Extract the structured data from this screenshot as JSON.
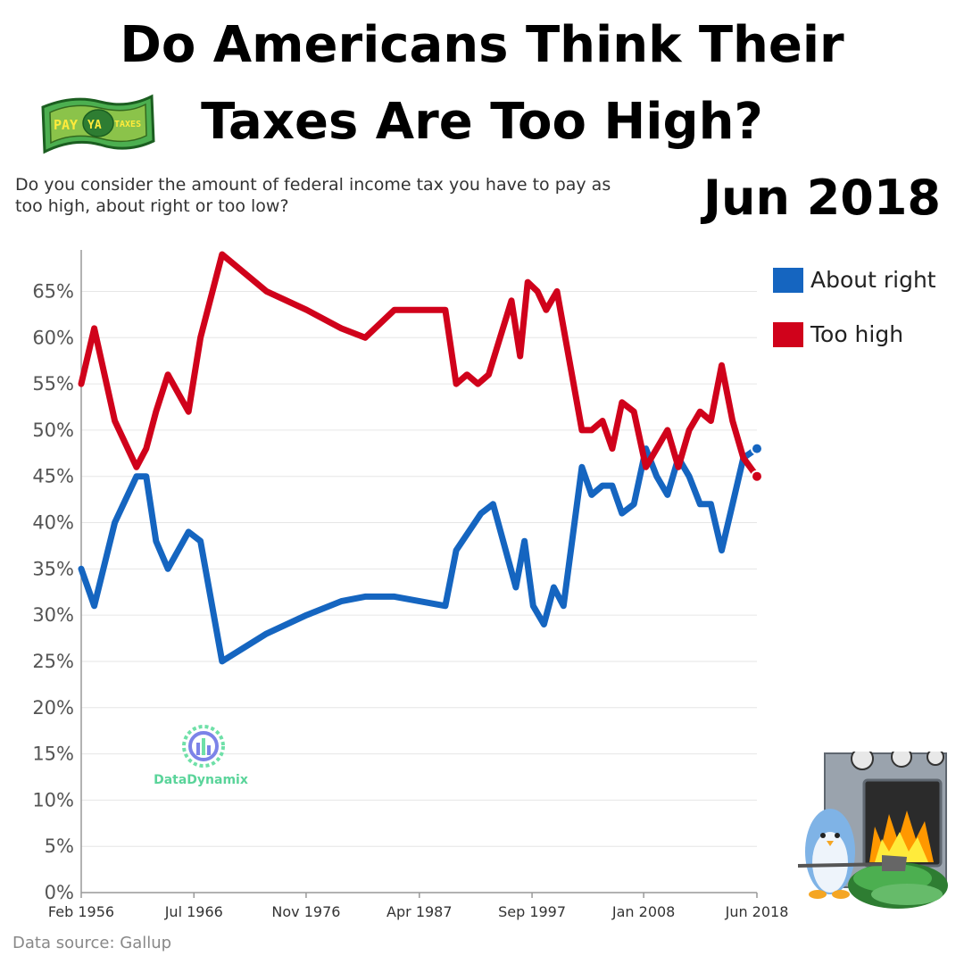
{
  "header": {
    "title_line_1": "Do Americans Think Their",
    "title_line_2": "Taxes Are Too High?",
    "subtitle": "Do you consider the amount of federal income tax you have to pay as too high, about right or too low?",
    "date": "Jun 2018",
    "logo_text_1": "PAY",
    "logo_text_2": "YA",
    "logo_text_3": "TAXES"
  },
  "watermark": {
    "text": "DataDynamix"
  },
  "footer": {
    "source": "Data source: Gallup"
  },
  "colors": {
    "about_right": "#1565c0",
    "too_high": "#d0021b",
    "grid": "#e6e6e6",
    "axis": "#999999"
  },
  "chart_data": {
    "type": "line",
    "title": "Do Americans Think Their Taxes Are Too High?",
    "xlabel": "",
    "ylabel": "",
    "ylim": [
      0,
      69
    ],
    "y_ticks": [
      "0%",
      "5%",
      "10%",
      "15%",
      "20%",
      "25%",
      "30%",
      "35%",
      "40%",
      "45%",
      "50%",
      "55%",
      "60%",
      "65%"
    ],
    "x_ticks": [
      {
        "label": "Feb 1956",
        "x": 1956.1
      },
      {
        "label": "Jul 1966",
        "x": 1966.5
      },
      {
        "label": "Nov 1976",
        "x": 1976.85
      },
      {
        "label": "Apr 1987",
        "x": 1987.3
      },
      {
        "label": "Sep 1997",
        "x": 1997.7
      },
      {
        "label": "Jan 2008",
        "x": 2008.0
      },
      {
        "label": "Jun 2018",
        "x": 2018.45
      }
    ],
    "x_range": [
      1956.1,
      2018.45
    ],
    "grid": true,
    "legend_position": "top-right",
    "series": [
      {
        "name": "About right",
        "color": "#1565c0",
        "points": [
          [
            1956.1,
            35
          ],
          [
            1957.3,
            31
          ],
          [
            1959.2,
            40
          ],
          [
            1961.2,
            45
          ],
          [
            1962.1,
            45
          ],
          [
            1963.0,
            38
          ],
          [
            1964.1,
            35
          ],
          [
            1966.0,
            39
          ],
          [
            1967.1,
            38
          ],
          [
            1969.1,
            25
          ],
          [
            1973.2,
            28
          ],
          [
            1976.9,
            30
          ],
          [
            1980.1,
            31.5
          ],
          [
            1982.3,
            32
          ],
          [
            1985.0,
            32
          ],
          [
            1989.7,
            31
          ],
          [
            1990.7,
            37
          ],
          [
            1993.0,
            41
          ],
          [
            1994.1,
            42
          ],
          [
            1996.2,
            33
          ],
          [
            1997.0,
            38
          ],
          [
            1997.8,
            31
          ],
          [
            1998.8,
            29
          ],
          [
            1999.7,
            33
          ],
          [
            2000.6,
            31
          ],
          [
            2002.3,
            46
          ],
          [
            2003.2,
            43
          ],
          [
            2004.2,
            44
          ],
          [
            2005.1,
            44
          ],
          [
            2006.0,
            41
          ],
          [
            2007.1,
            42
          ],
          [
            2008.2,
            48
          ],
          [
            2009.2,
            45
          ],
          [
            2010.2,
            43
          ],
          [
            2011.2,
            47
          ],
          [
            2012.2,
            45
          ],
          [
            2013.2,
            42
          ],
          [
            2014.2,
            42
          ],
          [
            2015.2,
            37
          ],
          [
            2016.2,
            42
          ],
          [
            2017.2,
            47
          ],
          [
            2018.45,
            48
          ]
        ]
      },
      {
        "name": "Too high",
        "color": "#d0021b",
        "points": [
          [
            1956.1,
            55
          ],
          [
            1957.3,
            61
          ],
          [
            1959.2,
            51
          ],
          [
            1961.2,
            46
          ],
          [
            1962.1,
            48
          ],
          [
            1963.0,
            52
          ],
          [
            1964.1,
            56
          ],
          [
            1966.0,
            52
          ],
          [
            1967.1,
            60
          ],
          [
            1969.1,
            69
          ],
          [
            1973.2,
            65
          ],
          [
            1976.9,
            63
          ],
          [
            1980.1,
            61
          ],
          [
            1982.3,
            60
          ],
          [
            1985.0,
            63
          ],
          [
            1989.7,
            63
          ],
          [
            1990.7,
            55
          ],
          [
            1991.7,
            56
          ],
          [
            1992.7,
            55
          ],
          [
            1993.7,
            56
          ],
          [
            1995.8,
            64
          ],
          [
            1996.6,
            58
          ],
          [
            1997.3,
            66
          ],
          [
            1998.2,
            65
          ],
          [
            1999.0,
            63
          ],
          [
            2000.0,
            65
          ],
          [
            2002.3,
            50
          ],
          [
            2003.2,
            50
          ],
          [
            2004.2,
            51
          ],
          [
            2005.1,
            48
          ],
          [
            2006.0,
            53
          ],
          [
            2007.1,
            52
          ],
          [
            2008.2,
            46
          ],
          [
            2009.2,
            48
          ],
          [
            2010.2,
            50
          ],
          [
            2011.2,
            46
          ],
          [
            2012.2,
            50
          ],
          [
            2013.2,
            52
          ],
          [
            2014.2,
            51
          ],
          [
            2015.2,
            57
          ],
          [
            2016.2,
            51
          ],
          [
            2017.2,
            47
          ],
          [
            2018.45,
            45
          ]
        ]
      }
    ]
  }
}
